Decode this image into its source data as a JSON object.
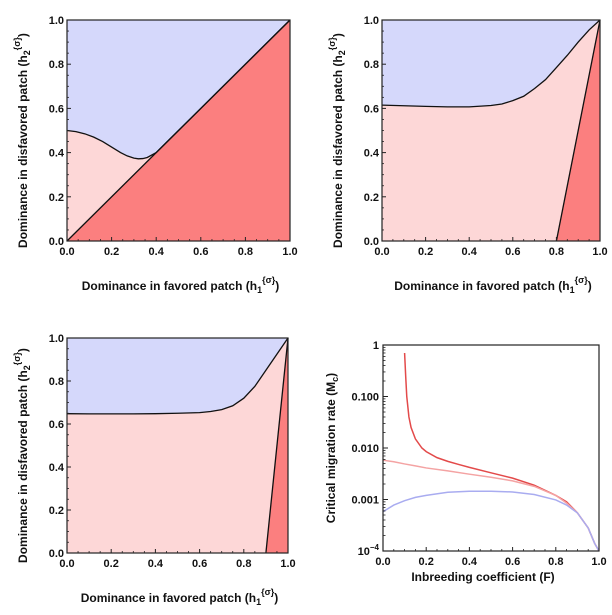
{
  "colors": {
    "region_blue": "#d5d8fb",
    "region_pink": "#fdd7d7",
    "region_red": "#fb7f7f",
    "boundary": "#111111",
    "curve_red": "#e34a4a",
    "curve_pink": "#f4a3a3",
    "curve_blue": "#a9acf0"
  },
  "chart_data": [
    {
      "type": "area",
      "panel": "top-left",
      "xlabel": "Dominance in favored patch (h",
      "xlabel_sub": "1",
      "xlabel_sup": "{σ}",
      "xlabel_end": ")",
      "ylabel": "Dominance in disfavored patch (h",
      "ylabel_sub": "2",
      "ylabel_sup": "{σ}",
      "ylabel_end": ")",
      "xlim": [
        0,
        1
      ],
      "ylim": [
        0,
        1
      ],
      "xticks": [
        "0.0",
        "0.2",
        "0.4",
        "0.6",
        "0.8",
        "1.0"
      ],
      "yticks": [
        "0.0",
        "0.2",
        "0.4",
        "0.6",
        "0.8",
        "1.0"
      ],
      "upper_boundary": {
        "x": [
          0,
          0.04,
          0.08,
          0.12,
          0.16,
          0.2,
          0.24,
          0.27,
          0.3,
          0.32,
          0.34,
          0.36,
          0.4,
          0.5,
          0.6,
          0.7,
          0.8,
          0.9,
          1.0
        ],
        "y": [
          0.5,
          0.495,
          0.485,
          0.47,
          0.45,
          0.425,
          0.4,
          0.385,
          0.375,
          0.372,
          0.373,
          0.378,
          0.4,
          0.5,
          0.6,
          0.7,
          0.8,
          0.9,
          1.0
        ]
      },
      "red_boundary": {
        "x": [
          0,
          1
        ],
        "y": [
          0,
          1
        ]
      }
    },
    {
      "type": "area",
      "panel": "top-right",
      "xlabel": "Dominance in favored patch (h",
      "xlabel_sub": "1",
      "xlabel_sup": "{σ}",
      "xlabel_end": ")",
      "ylabel": "Dominance in disfavored patch (h",
      "ylabel_sub": "2",
      "ylabel_sup": "{σ}",
      "ylabel_end": ")",
      "xlim": [
        0,
        1
      ],
      "ylim": [
        0,
        1
      ],
      "xticks": [
        "0.0",
        "0.2",
        "0.4",
        "0.6",
        "0.8",
        "1.0"
      ],
      "yticks": [
        "0.0",
        "0.2",
        "0.4",
        "0.6",
        "0.8",
        "1.0"
      ],
      "upper_boundary": {
        "x": [
          0,
          0.1,
          0.2,
          0.3,
          0.4,
          0.5,
          0.55,
          0.6,
          0.65,
          0.7,
          0.75,
          0.8,
          0.85,
          0.9,
          0.95,
          1.0
        ],
        "y": [
          0.615,
          0.612,
          0.609,
          0.607,
          0.607,
          0.613,
          0.62,
          0.635,
          0.655,
          0.69,
          0.73,
          0.785,
          0.84,
          0.9,
          0.955,
          1.0
        ]
      },
      "red_boundary": {
        "x": [
          0.8,
          1
        ],
        "y": [
          0,
          1
        ]
      }
    },
    {
      "type": "area",
      "panel": "bottom-left",
      "xlabel": "Dominance in favored patch (h",
      "xlabel_sub": "1",
      "xlabel_sup": "{σ}",
      "xlabel_end": ")",
      "ylabel": "Dominance in disfavored patch (h",
      "ylabel_sub": "2",
      "ylabel_sup": "{σ}",
      "ylabel_end": ")",
      "xlim": [
        0,
        1
      ],
      "ylim": [
        0,
        1
      ],
      "xticks": [
        "0.0",
        "0.2",
        "0.4",
        "0.6",
        "0.8",
        "1.0"
      ],
      "yticks": [
        "0.0",
        "0.2",
        "0.4",
        "0.6",
        "0.8",
        "1.0"
      ],
      "upper_boundary": {
        "x": [
          0,
          0.1,
          0.2,
          0.3,
          0.4,
          0.5,
          0.6,
          0.65,
          0.7,
          0.75,
          0.8,
          0.85,
          0.9,
          0.95,
          1.0
        ],
        "y": [
          0.648,
          0.647,
          0.647,
          0.647,
          0.648,
          0.65,
          0.653,
          0.658,
          0.667,
          0.685,
          0.72,
          0.775,
          0.85,
          0.925,
          1.0
        ]
      },
      "red_boundary": {
        "x": [
          0.9,
          1
        ],
        "y": [
          0,
          1
        ]
      }
    },
    {
      "type": "line",
      "panel": "bottom-right",
      "xlabel": "Inbreeding coefficient (F)",
      "ylabel": "Critical migration rate (M",
      "ylabel_sub": "c",
      "ylabel_end": ")",
      "xlim": [
        0,
        1
      ],
      "ylim_log10": [
        -4,
        0
      ],
      "yscale": "log",
      "xticks": [
        "0.0",
        "0.2",
        "0.4",
        "0.6",
        "0.8",
        "1.0"
      ],
      "yticks": [
        "10",
        "0.001",
        "0.010",
        "0.100",
        "1"
      ],
      "ytick_first_exponent": "−4",
      "series": [
        {
          "color": "#e34a4a",
          "x": [
            0.1,
            0.105,
            0.11,
            0.12,
            0.13,
            0.15,
            0.18,
            0.2,
            0.25,
            0.3,
            0.35,
            0.4,
            0.5,
            0.6,
            0.7,
            0.8,
            0.85,
            0.9,
            0.95,
            0.98,
            1.0
          ],
          "y": [
            0.7,
            0.25,
            0.1,
            0.04,
            0.025,
            0.015,
            0.01,
            0.0085,
            0.0065,
            0.0055,
            0.0048,
            0.0042,
            0.0033,
            0.0026,
            0.0019,
            0.0012,
            0.0009,
            0.00055,
            0.00028,
            0.00014,
            0.0001
          ]
        },
        {
          "color": "#f4a3a3",
          "x": [
            0.0,
            0.05,
            0.1,
            0.15,
            0.2,
            0.3,
            0.4,
            0.5,
            0.6,
            0.7,
            0.8,
            0.85,
            0.9,
            0.95,
            0.98,
            1.0
          ],
          "y": [
            0.0058,
            0.0054,
            0.0049,
            0.0045,
            0.0041,
            0.0036,
            0.0031,
            0.0027,
            0.0023,
            0.0018,
            0.0012,
            0.00085,
            0.00055,
            0.00028,
            0.00014,
            0.0001
          ]
        },
        {
          "color": "#a9acf0",
          "x": [
            0.0,
            0.05,
            0.1,
            0.15,
            0.2,
            0.3,
            0.4,
            0.5,
            0.6,
            0.7,
            0.8,
            0.85,
            0.9,
            0.95,
            0.98,
            1.0
          ],
          "y": [
            0.00058,
            0.00078,
            0.00095,
            0.0011,
            0.0012,
            0.00138,
            0.00145,
            0.00145,
            0.0014,
            0.00125,
            0.00098,
            0.00078,
            0.00055,
            0.00028,
            0.00014,
            0.0001
          ]
        }
      ]
    }
  ]
}
